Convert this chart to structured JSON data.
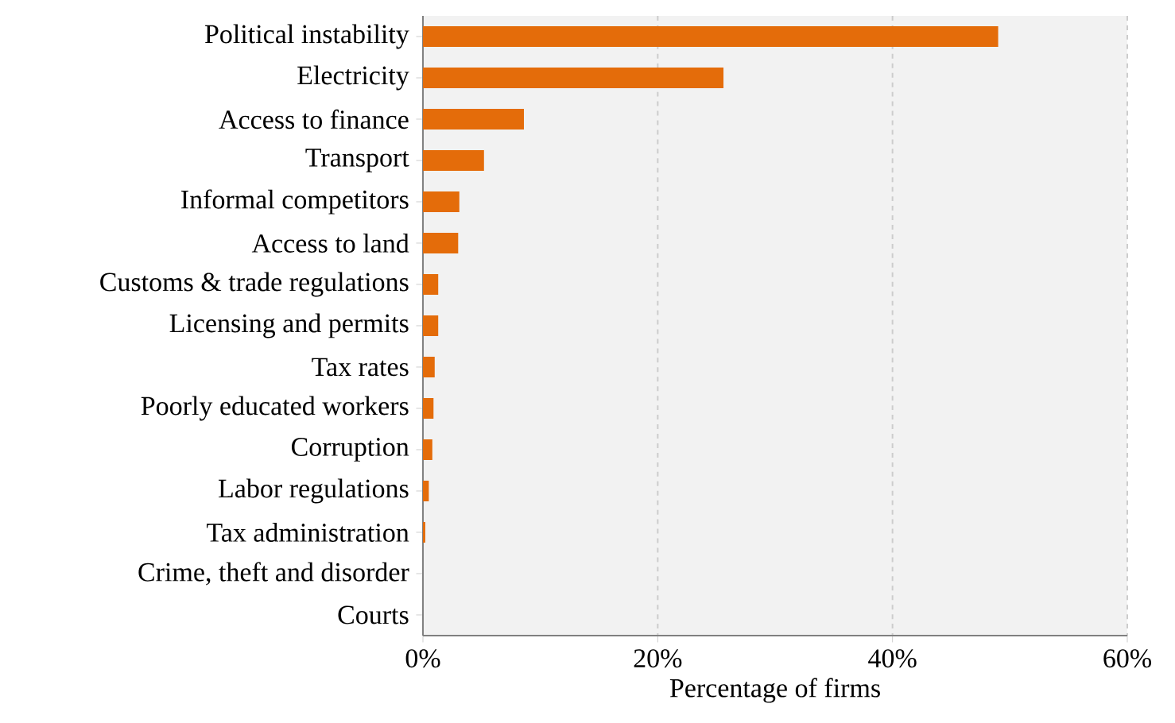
{
  "chart_data": {
    "type": "bar",
    "orientation": "horizontal",
    "xlabel": "Percentage of firms",
    "categories": [
      "Political instability",
      "Electricity",
      "Access to finance",
      "Transport",
      "Informal competitors",
      "Access to land",
      "Customs & trade regulations",
      "Licensing and permits",
      "Tax rates",
      "Poorly educated workers",
      "Corruption",
      "Labor regulations",
      "Tax administration",
      "Crime, theft and disorder",
      "Courts"
    ],
    "values": [
      49,
      25.6,
      8.6,
      5.2,
      3.1,
      3.0,
      1.3,
      1.3,
      1.0,
      0.9,
      0.8,
      0.5,
      0.2,
      0,
      0
    ],
    "color": "#e46c0a",
    "xlim": [
      0,
      60
    ],
    "xticks": [
      {
        "value": 0,
        "label": "0%"
      },
      {
        "value": 20,
        "label": "20%"
      },
      {
        "value": 40,
        "label": "40%"
      },
      {
        "value": 60,
        "label": "60%"
      }
    ],
    "grid": "x"
  }
}
